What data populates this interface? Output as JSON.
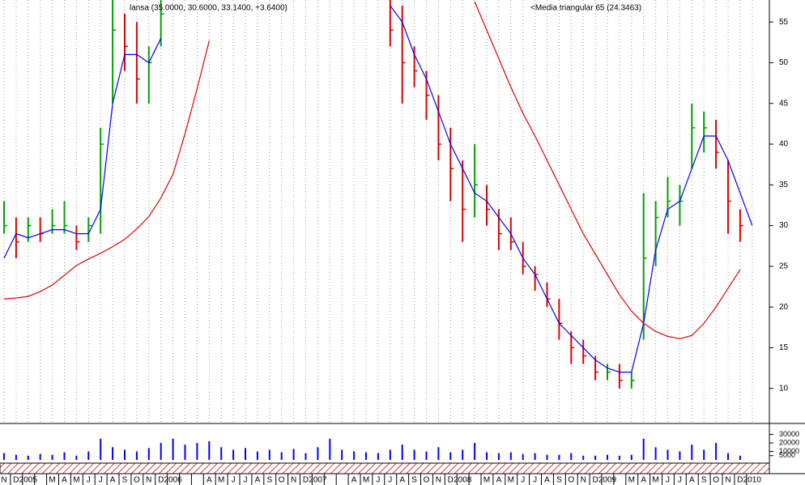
{
  "chart_data": {
    "type": "ohlc",
    "title": "lansa (35.0000, 30.6000, 33.1400, +3.6400)",
    "annotations": [
      "<Media triangular 65 (24.3463)"
    ],
    "categories": [
      "N",
      "D",
      "2005",
      null,
      "M",
      "A",
      "M",
      "J",
      "J",
      "A",
      "S",
      "O",
      "N",
      "D",
      "2006",
      null,
      null,
      "A",
      "M",
      "J",
      "J",
      "A",
      "S",
      "O",
      "N",
      "D",
      "2007",
      null,
      null,
      "A",
      "M",
      "J",
      "J",
      "A",
      "S",
      "O",
      "N",
      "D",
      "2008",
      null,
      "M",
      "A",
      "M",
      "J",
      "J",
      "A",
      "S",
      "O",
      "N",
      "D",
      "2009",
      null,
      "M",
      "A",
      "M",
      "J",
      "J",
      "A",
      "S",
      "O",
      "N",
      "D",
      "2010"
    ],
    "high": [
      33,
      31,
      31,
      31,
      32,
      33,
      30,
      31,
      42,
      58,
      56,
      55,
      52,
      58,
      null,
      null,
      null,
      null,
      null,
      null,
      null,
      null,
      null,
      null,
      null,
      null,
      null,
      null,
      null,
      null,
      null,
      null,
      58,
      57,
      52,
      49,
      46,
      42,
      38,
      40,
      35,
      32,
      31,
      28,
      25,
      23,
      21,
      17,
      16,
      14,
      13,
      13,
      12,
      34,
      33,
      36,
      35,
      45,
      44,
      43,
      38,
      32,
      null
    ],
    "low": [
      29,
      26,
      28,
      28,
      29,
      29,
      27,
      28,
      29,
      45,
      49,
      45,
      45,
      52,
      null,
      null,
      null,
      null,
      null,
      null,
      null,
      null,
      null,
      null,
      null,
      null,
      null,
      null,
      null,
      null,
      null,
      null,
      52,
      45,
      47,
      43,
      38,
      33,
      28,
      31,
      30,
      27,
      27,
      24,
      22,
      20,
      16,
      13,
      13,
      11,
      11,
      10,
      10,
      16,
      25,
      31,
      30,
      37,
      39,
      37,
      29,
      28,
      null
    ],
    "close": [
      30,
      28,
      30,
      29,
      30,
      30,
      28,
      30,
      40,
      54,
      52,
      48,
      50,
      56,
      null,
      null,
      null,
      null,
      null,
      null,
      null,
      null,
      null,
      null,
      null,
      null,
      null,
      null,
      null,
      null,
      null,
      null,
      54,
      50,
      49,
      46,
      40,
      37,
      32,
      35,
      32,
      29,
      28,
      25,
      24,
      21,
      18,
      15,
      14,
      12,
      12,
      11,
      11,
      26,
      31,
      33,
      33,
      42,
      42,
      39,
      33,
      30,
      null
    ],
    "up_color": "#00a000",
    "down_color": "#e00000",
    "series": [
      {
        "color": "#0000ff",
        "values": [
          26,
          29,
          28.5,
          29,
          29.5,
          29.5,
          29,
          29,
          32,
          45,
          51,
          51,
          50,
          53,
          null,
          null,
          null,
          null,
          null,
          null,
          null,
          null,
          null,
          null,
          null,
          null,
          null,
          null,
          null,
          null,
          null,
          null,
          57,
          55,
          51,
          48,
          44,
          40,
          37,
          34,
          33,
          31,
          29,
          26,
          24,
          21,
          18,
          16.5,
          15,
          13.5,
          12.5,
          12,
          12,
          18,
          27,
          32,
          33,
          37,
          41,
          41,
          38,
          34,
          30
        ]
      },
      {
        "color": "#e00000",
        "values": [
          21,
          21.1,
          21.3,
          21.9,
          22.7,
          23.9,
          25.1,
          25.9,
          26.6,
          27.4,
          28.3,
          29.6,
          31.1,
          33.4,
          36.3,
          41.3,
          46.8,
          52.7,
          null,
          null,
          null,
          null,
          null,
          null,
          null,
          null,
          null,
          null,
          null,
          null,
          null,
          null,
          null,
          null,
          null,
          null,
          null,
          null,
          null,
          57.5,
          54,
          50.5,
          47,
          43.8,
          41,
          38,
          35,
          32,
          29,
          26.5,
          24,
          21.5,
          19.5,
          18,
          17,
          16.4,
          16.1,
          16.5,
          18,
          20,
          22.3,
          24.6,
          null
        ]
      }
    ],
    "ylim": [
      5.8,
      57.7
    ],
    "yticks": [
      10,
      15,
      20,
      25,
      30,
      35,
      40,
      45,
      50,
      55
    ],
    "volume": {
      "color": "#0000ff",
      "values": [
        8000,
        6000,
        5000,
        7000,
        6000,
        9000,
        5000,
        10000,
        25000,
        15000,
        12000,
        10000,
        14000,
        20000,
        25000,
        18000,
        20000,
        22000,
        15000,
        12000,
        14000,
        10000,
        12000,
        9000,
        13000,
        8000,
        15000,
        25000,
        12000,
        10000,
        9000,
        8000,
        12000,
        18000,
        12000,
        10000,
        15000,
        9000,
        12000,
        20000,
        9000,
        8000,
        9000,
        7000,
        8000,
        6000,
        6000,
        8000,
        5000,
        5000,
        6000,
        5000,
        6000,
        25000,
        15000,
        12000,
        10000,
        18000,
        12000,
        20000,
        8000,
        5000,
        null
      ],
      "ylim": [
        0,
        42000
      ],
      "yticks": [
        30000,
        20000,
        10000,
        5000
      ]
    }
  }
}
